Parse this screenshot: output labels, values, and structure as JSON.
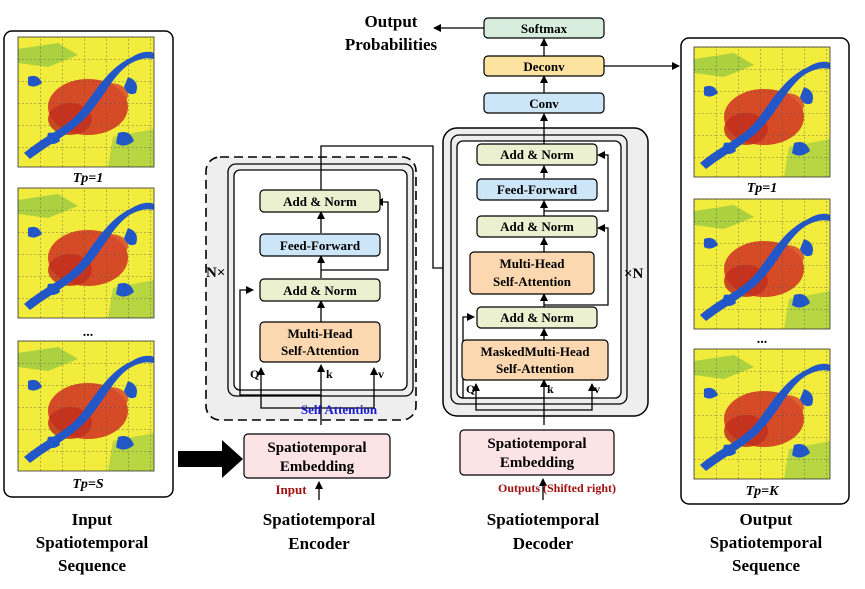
{
  "input_panel": {
    "frame_labels": [
      "Tp=1",
      "...",
      "Tp=S"
    ],
    "caption": [
      "Input",
      "Spatiotemporal",
      "Sequence"
    ]
  },
  "output_panel": {
    "frame_labels": [
      "Tp=1",
      "...",
      "Tp=K"
    ],
    "caption": [
      "Output",
      "Spatiotemporal",
      "Sequence"
    ]
  },
  "encoder": {
    "repeat_label": "N×",
    "add_norm_top": "Add & Norm",
    "feed_forward": "Feed-Forward",
    "add_norm_bottom": "Add & Norm",
    "attention": [
      "Multi-Head",
      "Self-Attention"
    ],
    "q": "Q",
    "k": "k",
    "v": "v",
    "self_attention_note": "Self Attention",
    "embedding": [
      "Spatiotemporal",
      "Embedding"
    ],
    "input_label": "Input",
    "caption": [
      "Spatiotemporal",
      "Encoder"
    ]
  },
  "decoder": {
    "repeat_label": "×N",
    "add_norm_top": "Add & Norm",
    "feed_forward": "Feed-Forward",
    "add_norm_mid": "Add & Norm",
    "cross_attention": [
      "Multi-Head",
      "Self-Attention"
    ],
    "add_norm_bottom": "Add & Norm",
    "masked_attention": [
      "MaskedMulti-Head",
      "Self-Attention"
    ],
    "q": "Q",
    "k": "k",
    "v": "v",
    "embedding": [
      "Spatiotemporal",
      "Embedding"
    ],
    "input_label": "Outputs (Shifted right)",
    "caption": [
      "Spatiotemporal",
      "Decoder"
    ]
  },
  "head": {
    "conv": "Conv",
    "deconv": "Deconv",
    "softmax": "Softmax",
    "output_probabilities": [
      "Output",
      "Probabilities"
    ]
  },
  "colors": {
    "map_yellow": "#f2ec3c",
    "urban_red": "#d23a22",
    "water_blue": "#2257c9",
    "add_norm_fill": "#ebf0d0",
    "feed_forward_fill": "#cce6f7",
    "attention_fill": "#fbd8b0",
    "embedding_fill": "#fbe3e6",
    "conv_fill": "#cce6f7",
    "deconv_fill": "#fde3a0",
    "softmax_fill": "#d7eedf",
    "note_blue": "#1a1ad0",
    "note_red": "#a01010"
  }
}
